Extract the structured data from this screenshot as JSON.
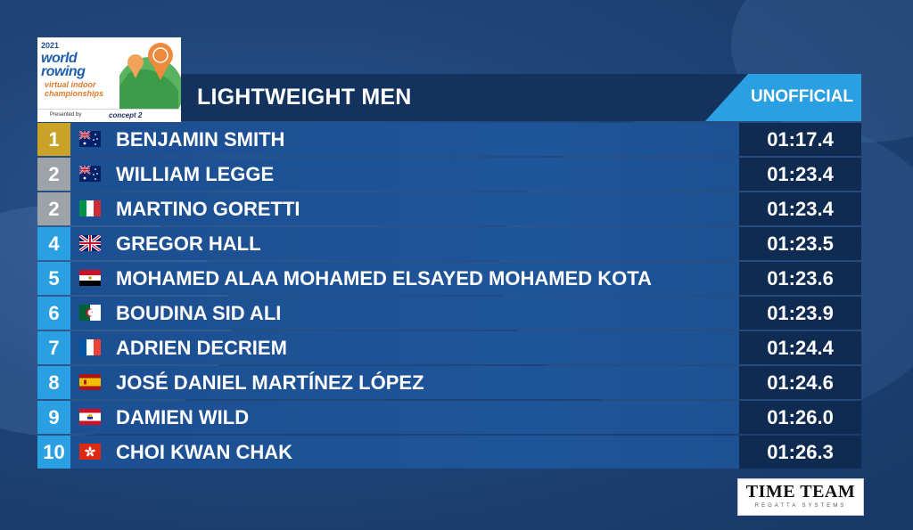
{
  "event": {
    "year": "2021",
    "brand_line1": "world",
    "brand_line2": "rowing",
    "subtitle_line1": "virtual indoor",
    "subtitle_line2": "championships",
    "presented_by": "Presented by",
    "sponsor": "concept 2"
  },
  "header": {
    "title": "LIGHTWEIGHT MEN",
    "status": "UNOFFICIAL"
  },
  "results": [
    {
      "rank": "1",
      "medal": "gold",
      "flag": "AUS",
      "name": "BENJAMIN SMITH",
      "time": "01:17.4"
    },
    {
      "rank": "2",
      "medal": "silver",
      "flag": "AUS",
      "name": "WILLIAM LEGGE",
      "time": "01:23.4"
    },
    {
      "rank": "2",
      "medal": "silver",
      "flag": "ITA",
      "name": "MARTINO GORETTI",
      "time": "01:23.4"
    },
    {
      "rank": "4",
      "medal": "none",
      "flag": "GBR",
      "name": "GREGOR HALL",
      "time": "01:23.5"
    },
    {
      "rank": "5",
      "medal": "none",
      "flag": "EGY",
      "name": "MOHAMED ALAA MOHAMED ELSAYED MOHAMED KOTA",
      "time": "01:23.6"
    },
    {
      "rank": "6",
      "medal": "none",
      "flag": "ALG",
      "name": "BOUDINA SID ALI",
      "time": "01:23.9"
    },
    {
      "rank": "7",
      "medal": "none",
      "flag": "FRA",
      "name": "ADRIEN DECRIEM",
      "time": "01:24.4"
    },
    {
      "rank": "8",
      "medal": "none",
      "flag": "ESP",
      "name": "JOSÉ DANIEL MARTÍNEZ LÓPEZ",
      "time": "01:24.6"
    },
    {
      "rank": "9",
      "medal": "none",
      "flag": "PYF",
      "name": "DAMIEN WILD",
      "time": "01:26.0"
    },
    {
      "rank": "10",
      "medal": "none",
      "flag": "HKG",
      "name": "CHOI KWAN CHAK",
      "time": "01:26.3"
    }
  ],
  "timing": {
    "name": "TIME TEAM",
    "tagline": "REGATTA SYSTEMS"
  },
  "colors": {
    "gold": "#c9a227",
    "silver": "#9ea3a8",
    "accent": "#2aa0e2",
    "header_bg": "#13335e"
  }
}
